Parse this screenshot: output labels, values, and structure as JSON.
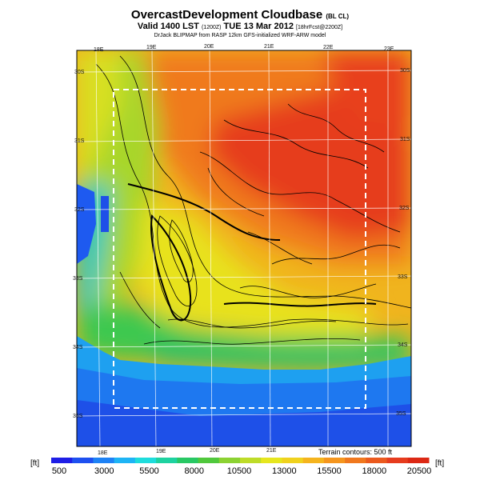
{
  "header": {
    "title": "OvercastDevelopment Cloudbase",
    "title_tag": "(BL CL)",
    "subtitle_main": "Valid 1400 LST",
    "subtitle_zulu": "(1200Z)",
    "subtitle_date": "TUE 13 Mar 2012",
    "subtitle_forecast": "[18hrFcst@2200Z]",
    "credit": "DrJack BLIPMAP from RASP 12km GFS-initialized WRF-ARW model"
  },
  "map": {
    "longitudes": [
      "18E",
      "19E",
      "20E",
      "21E",
      "22E",
      "23E"
    ],
    "latitudes": [
      "30S",
      "31S",
      "32S",
      "33S",
      "34S",
      "35S"
    ],
    "terrain_note": "Terrain contours: 500 ft"
  },
  "colorbar": {
    "unit_left": "[ft]",
    "unit_right": "[ft]",
    "labels": [
      "500",
      "3000",
      "5500",
      "8000",
      "10500",
      "13000",
      "15500",
      "18000",
      "20500"
    ],
    "colors": [
      "#1e1ee6",
      "#1e50f0",
      "#1e82f5",
      "#1eb4f5",
      "#1edcdc",
      "#1ed2a0",
      "#28c864",
      "#50c83c",
      "#8cd232",
      "#bedc28",
      "#e6e61e",
      "#f0d21e",
      "#f5b41e",
      "#f5961e",
      "#f0781e",
      "#eb5a1e",
      "#e63c1e",
      "#dc2814"
    ]
  }
}
